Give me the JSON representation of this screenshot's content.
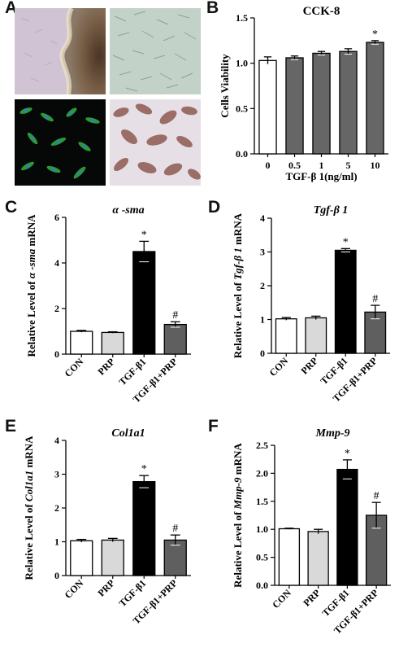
{
  "panels": [
    {
      "letter": "A"
    },
    {
      "letter": "B"
    },
    {
      "letter": "C"
    },
    {
      "letter": "D"
    },
    {
      "letter": "E"
    },
    {
      "letter": "F"
    }
  ],
  "micrographs": [
    {
      "kind": "tissue-explant-brightfield"
    },
    {
      "kind": "fibroblast-phase-contrast"
    },
    {
      "kind": "immunofluorescence-green-blue"
    },
    {
      "kind": "immunohistochemistry-brown"
    }
  ],
  "colors": {
    "white": "#ffffff",
    "light_gray": "#d9d9d9",
    "black": "#000000",
    "dark_gray": "#5f5f5f",
    "mid_gray": "#666666"
  },
  "chart_data": [
    {
      "id": "B",
      "type": "bar",
      "title": "CCK-8",
      "title_style": "normal",
      "xlabel": "TGF-β 1(ng/ml)",
      "ylabel": "Cells Viability",
      "ylabel_parts": [],
      "categories": [
        "0",
        "0.5",
        "1",
        "5",
        "10"
      ],
      "values": [
        1.03,
        1.06,
        1.11,
        1.13,
        1.23
      ],
      "errors": [
        0.04,
        0.02,
        0.02,
        0.03,
        0.02
      ],
      "colors": [
        "#ffffff",
        "#666666",
        "#666666",
        "#666666",
        "#666666"
      ],
      "marks": [
        "",
        "",
        "",
        "",
        "*"
      ],
      "ylim": [
        0,
        1.5
      ],
      "yticks": [
        "0.0",
        "0.5",
        "1.0",
        "1.5"
      ],
      "rotate_x": false
    },
    {
      "id": "C",
      "type": "bar",
      "title": "α -sma",
      "title_style": "italic",
      "xlabel": "",
      "ylabel": "",
      "ylabel_parts": [
        {
          "t": "Relative Level of ",
          "i": false
        },
        {
          "t": "α -sma",
          "i": true
        },
        {
          "t": " mRNA",
          "i": false
        }
      ],
      "categories": [
        "CON",
        "PRP",
        "TGF-β1",
        "TGF-β1+PRP"
      ],
      "values": [
        1.0,
        0.95,
        4.5,
        1.3
      ],
      "errors": [
        0.04,
        0.03,
        0.45,
        0.12
      ],
      "colors": [
        "#ffffff",
        "#d9d9d9",
        "#000000",
        "#5f5f5f"
      ],
      "marks": [
        "",
        "",
        "*",
        "#"
      ],
      "ylim": [
        0,
        6
      ],
      "yticks": [
        "0",
        "2",
        "4",
        "6"
      ],
      "rotate_x": true
    },
    {
      "id": "D",
      "type": "bar",
      "title": "Tgf-β 1",
      "title_style": "italic",
      "xlabel": "",
      "ylabel": "",
      "ylabel_parts": [
        {
          "t": "Relative Level of ",
          "i": false
        },
        {
          "t": "Tgf-β 1",
          "i": true
        },
        {
          "t": " mRNA",
          "i": false
        }
      ],
      "categories": [
        "CON",
        "PRP",
        "TGF-β1",
        "TGF-β1+PRP"
      ],
      "values": [
        1.02,
        1.05,
        3.05,
        1.22
      ],
      "errors": [
        0.04,
        0.05,
        0.05,
        0.2
      ],
      "colors": [
        "#ffffff",
        "#d9d9d9",
        "#000000",
        "#5f5f5f"
      ],
      "marks": [
        "",
        "",
        "*",
        "#"
      ],
      "ylim": [
        0,
        4
      ],
      "yticks": [
        "0",
        "1",
        "2",
        "3",
        "4"
      ],
      "rotate_x": true
    },
    {
      "id": "E",
      "type": "bar",
      "title": "Col1a1",
      "title_style": "italic",
      "xlabel": "",
      "ylabel": "",
      "ylabel_parts": [
        {
          "t": "Relative Level of ",
          "i": false
        },
        {
          "t": "Col1a1",
          "i": true
        },
        {
          "t": " mRNA",
          "i": false
        }
      ],
      "categories": [
        "CON",
        "PRP",
        "TGF-β1",
        "TGF-β1+PRP"
      ],
      "values": [
        1.03,
        1.05,
        2.78,
        1.05
      ],
      "errors": [
        0.04,
        0.05,
        0.18,
        0.15
      ],
      "colors": [
        "#ffffff",
        "#d9d9d9",
        "#000000",
        "#5f5f5f"
      ],
      "marks": [
        "",
        "",
        "*",
        "#"
      ],
      "ylim": [
        0,
        4
      ],
      "yticks": [
        "0",
        "1",
        "2",
        "3",
        "4"
      ],
      "rotate_x": true
    },
    {
      "id": "F",
      "type": "bar",
      "title": "Mmp-9",
      "title_style": "italic",
      "xlabel": "",
      "ylabel": "",
      "ylabel_parts": [
        {
          "t": "Relative Level of ",
          "i": false
        },
        {
          "t": "Mmp-9",
          "i": true
        },
        {
          "t": " mRNA",
          "i": false
        }
      ],
      "categories": [
        "CON",
        "PRP",
        "TGF-β1",
        "TGF-β1+PRP"
      ],
      "values": [
        1.01,
        0.96,
        2.07,
        1.25
      ],
      "errors": [
        0.01,
        0.04,
        0.17,
        0.23
      ],
      "colors": [
        "#ffffff",
        "#d9d9d9",
        "#000000",
        "#5f5f5f"
      ],
      "marks": [
        "",
        "",
        "*",
        "#"
      ],
      "ylim": [
        0,
        2.5
      ],
      "yticks": [
        "0.0",
        "0.5",
        "1.0",
        "1.5",
        "2.0",
        "2.5"
      ],
      "rotate_x": true
    }
  ]
}
